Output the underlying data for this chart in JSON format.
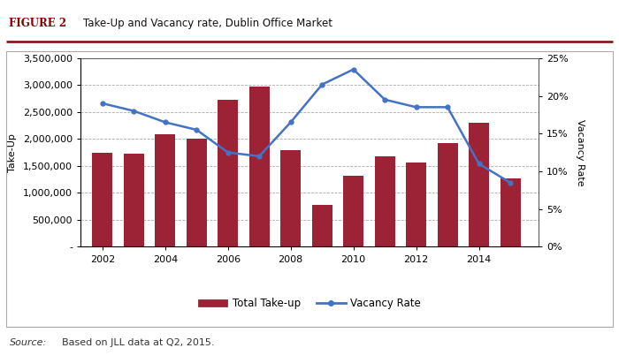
{
  "title": "Take-Up and Vacancy rate, Dublin Office Market",
  "figure_label": "FIGURE 2",
  "source_text": "Based on JLL data at Q2, 2015.",
  "years": [
    2002,
    2003,
    2004,
    2005,
    2006,
    2007,
    2008,
    2009,
    2010,
    2011,
    2012,
    2013,
    2014,
    2015
  ],
  "takeup": [
    1750000,
    1720000,
    2080000,
    2000000,
    2720000,
    2980000,
    1800000,
    780000,
    1320000,
    1680000,
    1560000,
    1920000,
    2300000,
    1270000
  ],
  "vacancy": [
    19.0,
    18.0,
    16.5,
    15.5,
    12.5,
    12.0,
    16.5,
    21.5,
    23.5,
    19.5,
    18.5,
    18.5,
    11.0,
    8.5
  ],
  "bar_color": "#9B2335",
  "line_color": "#4472C4",
  "ylabel_left": "Take-Up",
  "ylabel_right": "Vacancy Rate",
  "ylim_left": [
    0,
    3500000
  ],
  "ylim_right": [
    0,
    25
  ],
  "yticks_left": [
    0,
    500000,
    1000000,
    1500000,
    2000000,
    2500000,
    3000000,
    3500000
  ],
  "yticks_right": [
    0,
    5,
    10,
    15,
    20,
    25
  ],
  "background_color": "#FFFFFF",
  "plot_bg_color": "#FFFFFF",
  "grid_color": "#AAAAAA",
  "figure_label_color": "#8B0000",
  "border_color": "#AAAAAA",
  "top_rule_color": "#8B0000",
  "source_label": "Source:",
  "xticks": [
    2002,
    2004,
    2006,
    2008,
    2010,
    2012,
    2014
  ],
  "xlim": [
    2001.3,
    2015.9
  ]
}
